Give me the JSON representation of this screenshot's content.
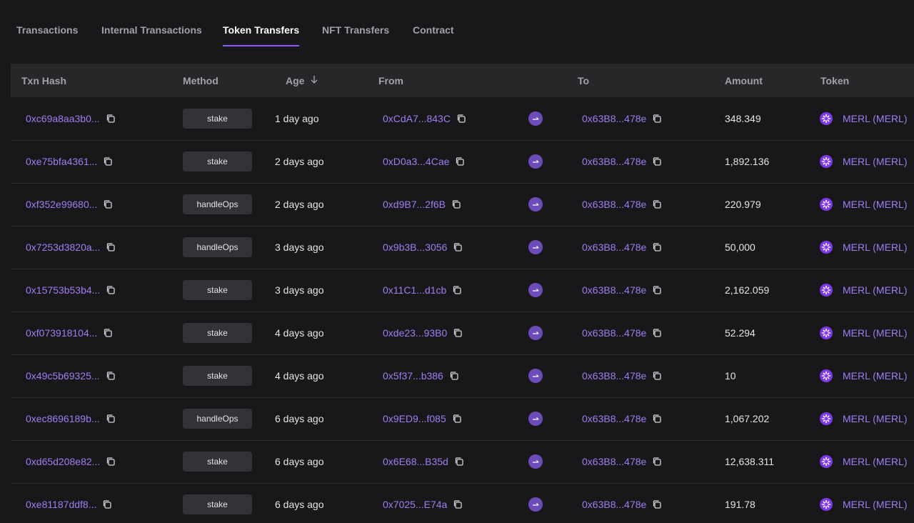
{
  "tabs": [
    "Transactions",
    "Internal Transactions",
    "Token Transfers",
    "NFT Transfers",
    "Contract"
  ],
  "active_tab": 2,
  "table": {
    "headers": [
      "Txn Hash",
      "Method",
      "Age",
      "From",
      "To",
      "Amount",
      "Token"
    ],
    "rows": [
      [
        "0xc69a8aa3b0...",
        "stake",
        "1 day ago",
        "0xCdA7...843C",
        "0x63B8...478e",
        "348.349",
        "MERL (MERL)"
      ],
      [
        "0xe75bfa4361...",
        "stake",
        "2 days ago",
        "0xD0a3...4Cae",
        "0x63B8...478e",
        "1,892.136",
        "MERL (MERL)"
      ],
      [
        "0xf352e99680...",
        "handleOps",
        "2 days ago",
        "0xd9B7...2f6B",
        "0x63B8...478e",
        "220.979",
        "MERL (MERL)"
      ],
      [
        "0x7253d3820a...",
        "handleOps",
        "3 days ago",
        "0x9b3B...3056",
        "0x63B8...478e",
        "50,000",
        "MERL (MERL)"
      ],
      [
        "0x15753b53b4...",
        "stake",
        "3 days ago",
        "0x11C1...d1cb",
        "0x63B8...478e",
        "2,162.059",
        "MERL (MERL)"
      ],
      [
        "0xf073918104...",
        "stake",
        "4 days ago",
        "0xde23...93B0",
        "0x63B8...478e",
        "52.294",
        "MERL (MERL)"
      ],
      [
        "0x49c5b69325...",
        "stake",
        "4 days ago",
        "0x5f37...b386",
        "0x63B8...478e",
        "10",
        "MERL (MERL)"
      ],
      [
        "0xec8696189b...",
        "handleOps",
        "6 days ago",
        "0x9ED9...f085",
        "0x63B8...478e",
        "1,067.202",
        "MERL (MERL)"
      ],
      [
        "0xd65d208e82...",
        "stake",
        "6 days ago",
        "0x6E68...B35d",
        "0x63B8...478e",
        "12,638.311",
        "MERL (MERL)"
      ],
      [
        "0xe81187ddf8...",
        "stake",
        "6 days ago",
        "0x7025...E74a",
        "0x63B8...478e",
        "191.78",
        "MERL (MERL)"
      ]
    ]
  }
}
